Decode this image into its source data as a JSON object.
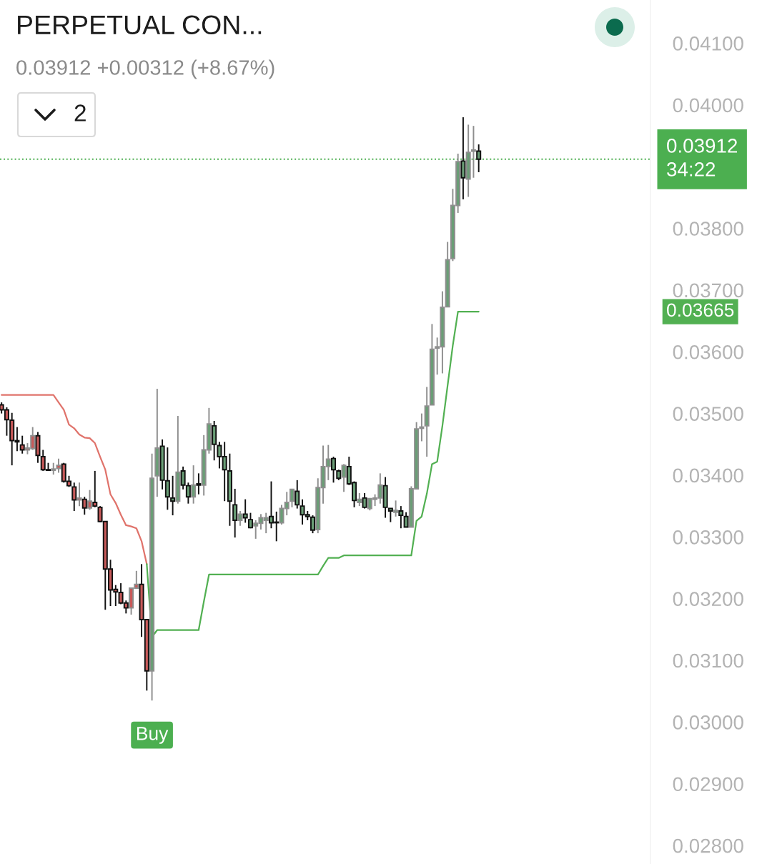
{
  "chart_data": {
    "type": "candlestick",
    "title": "PERPETUAL CON...",
    "subtitle": "0.03912 +0.00312 (+8.67%)",
    "categories": [
      null,
      null,
      null,
      null,
      null,
      null,
      null,
      null,
      null,
      null,
      null,
      null,
      null,
      null,
      null,
      null,
      null,
      null,
      null,
      null,
      null,
      null,
      null,
      null,
      null,
      null,
      null,
      null,
      null,
      null,
      null,
      null,
      null,
      null,
      null,
      null,
      null,
      null,
      null,
      null,
      null,
      null,
      null,
      null,
      null,
      null,
      null,
      null,
      null,
      null,
      null,
      null,
      null,
      null,
      null,
      null,
      null,
      null,
      null,
      null,
      null,
      null,
      null,
      null,
      null,
      null,
      null,
      null,
      null,
      null,
      null,
      null,
      null,
      null,
      null,
      null,
      null,
      null,
      null,
      null,
      null,
      null,
      null,
      null,
      null,
      null,
      null,
      null,
      null,
      null,
      null,
      null,
      null
    ],
    "ohlc": [
      [
        0.03514,
        0.03518,
        0.035,
        0.03506
      ],
      [
        0.03506,
        0.0351,
        0.03464,
        0.0349
      ],
      [
        0.03489,
        0.03501,
        0.03416,
        0.03456
      ],
      [
        0.03456,
        0.03478,
        0.03439,
        0.03454
      ],
      [
        0.03449,
        0.03464,
        0.03435,
        0.03441
      ],
      [
        0.03441,
        0.03452,
        0.03434,
        0.03444
      ],
      [
        0.03443,
        0.03478,
        0.03441,
        0.03464
      ],
      [
        0.03464,
        0.0347,
        0.0342,
        0.03432
      ],
      [
        0.0343,
        0.03441,
        0.03407,
        0.03409
      ],
      [
        0.03409,
        0.0342,
        0.03407,
        0.03408
      ],
      [
        0.03408,
        0.0342,
        0.03401,
        0.0341
      ],
      [
        0.03411,
        0.03427,
        0.03404,
        0.03416
      ],
      [
        0.03418,
        0.0342,
        0.03388,
        0.0339
      ],
      [
        0.0339,
        0.03399,
        0.03381,
        0.03383
      ],
      [
        0.03381,
        0.03388,
        0.03342,
        0.0336
      ],
      [
        0.0336,
        0.03388,
        0.0335,
        0.03363
      ],
      [
        0.03361,
        0.03365,
        0.03336,
        0.03347
      ],
      [
        0.03347,
        0.03376,
        0.03344,
        0.03358
      ],
      [
        0.03356,
        0.03407,
        0.03348,
        0.0335
      ],
      [
        0.03348,
        0.0335,
        0.03324,
        0.03325
      ],
      [
        0.03325,
        0.03325,
        0.03182,
        0.03248
      ],
      [
        0.03248,
        0.03263,
        0.03188,
        0.03214
      ],
      [
        0.03215,
        0.03222,
        0.03188,
        0.03211
      ],
      [
        0.0321,
        0.03225,
        0.03191,
        0.03193
      ],
      [
        0.03193,
        0.03197,
        0.03176,
        0.03185
      ],
      [
        0.03185,
        0.03217,
        0.03174,
        0.03217
      ],
      [
        0.03217,
        0.03245,
        0.03216,
        0.03223
      ],
      [
        0.03223,
        0.03256,
        0.03138,
        0.03166
      ],
      [
        0.03166,
        0.03166,
        0.03051,
        0.03083
      ],
      [
        0.03083,
        0.03435,
        0.03035,
        0.03395
      ],
      [
        0.03399,
        0.0354,
        0.03365,
        0.03444
      ],
      [
        0.03447,
        0.03458,
        0.03377,
        0.03392
      ],
      [
        0.03391,
        0.03445,
        0.03344,
        0.03365
      ],
      [
        0.03363,
        0.03399,
        0.03335,
        0.03358
      ],
      [
        0.03358,
        0.03496,
        0.03354,
        0.03405
      ],
      [
        0.03407,
        0.03414,
        0.03377,
        0.03384
      ],
      [
        0.03383,
        0.03388,
        0.03354,
        0.03365
      ],
      [
        0.03365,
        0.03416,
        0.03354,
        0.03384
      ],
      [
        0.03386,
        0.03403,
        0.03369,
        0.03384
      ],
      [
        0.03384,
        0.03465,
        0.03367,
        0.03441
      ],
      [
        0.03441,
        0.03509,
        0.03435,
        0.03483
      ],
      [
        0.0348,
        0.03488,
        0.03424,
        0.0345
      ],
      [
        0.03448,
        0.03454,
        0.03411,
        0.0343
      ],
      [
        0.0343,
        0.03454,
        0.03358,
        0.03409
      ],
      [
        0.03407,
        0.03435,
        0.03318,
        0.03358
      ],
      [
        0.03352,
        0.03378,
        0.03299,
        0.03327
      ],
      [
        0.03327,
        0.03342,
        0.03318,
        0.03337
      ],
      [
        0.03337,
        0.03361,
        0.03323,
        0.03331
      ],
      [
        0.03328,
        0.03339,
        0.03314,
        0.03315
      ],
      [
        0.03318,
        0.03327,
        0.03297,
        0.03322
      ],
      [
        0.03322,
        0.03337,
        0.03312,
        0.03331
      ],
      [
        0.03327,
        0.03339,
        0.03306,
        0.03331
      ],
      [
        0.03333,
        0.0339,
        0.03314,
        0.03323
      ],
      [
        0.03324,
        0.03341,
        0.03293,
        0.03323
      ],
      [
        0.03323,
        0.03352,
        0.0332,
        0.03346
      ],
      [
        0.03346,
        0.03373,
        0.03335,
        0.03356
      ],
      [
        0.03358,
        0.03378,
        0.03348,
        0.03377
      ],
      [
        0.03374,
        0.03392,
        0.03346,
        0.03352
      ],
      [
        0.0335,
        0.03361,
        0.0332,
        0.03336
      ],
      [
        0.03336,
        0.03342,
        0.03327,
        0.03333
      ],
      [
        0.03332,
        0.03335,
        0.03306,
        0.03311
      ],
      [
        0.03312,
        0.03395,
        0.03306,
        0.0338
      ],
      [
        0.0338,
        0.03448,
        0.03354,
        0.03414
      ],
      [
        0.03414,
        0.03449,
        0.03392,
        0.03426
      ],
      [
        0.03427,
        0.0343,
        0.03388,
        0.03409
      ],
      [
        0.03407,
        0.03409,
        0.03392,
        0.03395
      ],
      [
        0.03397,
        0.03418,
        0.03373,
        0.03416
      ],
      [
        0.03414,
        0.0343,
        0.03384,
        0.03386
      ],
      [
        0.03388,
        0.0339,
        0.03348,
        0.03359
      ],
      [
        0.03356,
        0.03371,
        0.0335,
        0.03361
      ],
      [
        0.03363,
        0.03371,
        0.03346,
        0.03348
      ],
      [
        0.03346,
        0.03363,
        0.03343,
        0.03362
      ],
      [
        0.03361,
        0.03369,
        0.0335,
        0.03363
      ],
      [
        0.03363,
        0.03403,
        0.03354,
        0.03384
      ],
      [
        0.03383,
        0.03397,
        0.03331,
        0.03348
      ],
      [
        0.03346,
        0.03346,
        0.03324,
        0.03342
      ],
      [
        0.0334,
        0.03359,
        0.03333,
        0.03343
      ],
      [
        0.03342,
        0.0335,
        0.03314,
        0.03335
      ],
      [
        0.03333,
        0.0334,
        0.03316,
        0.03316
      ],
      [
        0.03316,
        0.03382,
        0.03316,
        0.03378
      ],
      [
        0.03378,
        0.03486,
        0.03378,
        0.03475
      ],
      [
        0.03476,
        0.035,
        0.03455,
        0.03478
      ],
      [
        0.0348,
        0.03543,
        0.0343,
        0.03512
      ],
      [
        0.03514,
        0.03645,
        0.03514,
        0.03604
      ],
      [
        0.03606,
        0.03623,
        0.03563,
        0.03608
      ],
      [
        0.03608,
        0.03698,
        0.03565,
        0.03672
      ],
      [
        0.03673,
        0.03778,
        0.03673,
        0.03749
      ],
      [
        0.03751,
        0.03864,
        0.03747,
        0.03837
      ],
      [
        0.03837,
        0.03921,
        0.03825,
        0.03908
      ],
      [
        0.03909,
        0.0398,
        0.03847,
        0.03882
      ],
      [
        0.0388,
        0.03968,
        0.03851,
        0.03923
      ],
      [
        0.03925,
        0.03966,
        0.03882,
        0.03927
      ],
      [
        0.03925,
        0.03936,
        0.03891,
        0.03912
      ]
    ],
    "colors": [
      "#c85a5a",
      "#c85a5a",
      "#c85a5a",
      "#c85a5a",
      "#c85a5a",
      "#c85a5a",
      "#c85a5a",
      "#c85a5a",
      "#c85a5a",
      "#c85a5a",
      "#c85a5a",
      "#c85a5a",
      "#c85a5a",
      "#c85a5a",
      "#c85a5a",
      "#c85a5a",
      "#c85a5a",
      "#c85a5a",
      "#c85a5a",
      "#c85a5a",
      "#c85a5a",
      "#c85a5a",
      "#c85a5a",
      "#c85a5a",
      "#c85a5a",
      "#c85a5a",
      "#c85a5a",
      "#c85a5a",
      "#c85a5a",
      "#6a9e76",
      "#6a9e76",
      "#6a9e76",
      "#6a9e76",
      "#6a9e76",
      "#6a9e76",
      "#6a9e76",
      "#6a9e76",
      "#6a9e76",
      "#6a9e76",
      "#6a9e76",
      "#6a9e76",
      "#6a9e76",
      "#6a9e76",
      "#6a9e76",
      "#6a9e76",
      "#6a9e76",
      "#6a9e76",
      "#6a9e76",
      "#6a9e76",
      "#6a9e76",
      "#6a9e76",
      "#6a9e76",
      "#6a9e76",
      "#6a9e76",
      "#6a9e76",
      "#6a9e76",
      "#6a9e76",
      "#6a9e76",
      "#6a9e76",
      "#6a9e76",
      "#6a9e76",
      "#6a9e76",
      "#6a9e76",
      "#6a9e76",
      "#6a9e76",
      "#6a9e76",
      "#6a9e76",
      "#6a9e76",
      "#6a9e76",
      "#6a9e76",
      "#6a9e76",
      "#6a9e76",
      "#6a9e76",
      "#6a9e76",
      "#6a9e76",
      "#6a9e76",
      "#6a9e76",
      "#6a9e76",
      "#6a9e76",
      "#6a9e76",
      "#6a9e76",
      "#6a9e76",
      "#6a9e76",
      "#6a9e76",
      "#6a9e76",
      "#6a9e76",
      "#6a9e76",
      "#6a9e76",
      "#6a9e76",
      "#6a9e76",
      "#6a9e76",
      "#6a9e76",
      "#6a9e76"
    ],
    "value_labels": [
      null,
      null,
      null,
      null,
      null,
      null,
      null,
      null,
      null,
      null,
      null,
      null,
      null,
      null,
      null,
      null,
      null,
      null,
      null,
      null,
      null,
      null,
      null,
      null,
      null,
      null,
      null,
      null,
      null,
      "Buy",
      null,
      null,
      null,
      null,
      null,
      null,
      null,
      null,
      null,
      null,
      null,
      null,
      null,
      null,
      null,
      null,
      null,
      null,
      null,
      null,
      null,
      null,
      null,
      null,
      null,
      null,
      null,
      null,
      null,
      null,
      null,
      null,
      null,
      null,
      null,
      null,
      null,
      null,
      null,
      null,
      null,
      null,
      null,
      null,
      null,
      null,
      null,
      null,
      null,
      null,
      null,
      null,
      null,
      null,
      null,
      null,
      null,
      null,
      null,
      null,
      null,
      null,
      null
    ],
    "series": [
      {
        "type": "line",
        "color": "#e0736b",
        "values": [
          0.0353,
          0.0353,
          0.0353,
          0.0353,
          0.0353,
          0.0353,
          0.0353,
          0.0353,
          0.0353,
          0.0353,
          0.0353,
          0.03518,
          0.03506,
          0.03482,
          0.03476,
          0.03466,
          0.03461,
          0.0346,
          0.03452,
          0.0343,
          0.03409,
          0.03369,
          0.03355,
          0.03336,
          0.03319,
          0.03317,
          0.03314,
          0.03293,
          0.03256,
          null,
          null,
          null,
          null,
          null,
          null,
          null,
          null,
          null,
          null,
          null,
          null,
          null,
          null,
          null,
          null,
          null,
          null,
          null,
          null,
          null,
          null,
          null,
          null,
          null,
          null,
          null,
          null,
          null,
          null,
          null,
          null,
          null,
          null,
          null,
          null,
          null,
          null,
          null,
          null,
          null,
          null,
          null,
          null,
          null,
          null,
          null,
          null,
          null,
          null,
          null,
          null,
          null,
          null,
          null,
          null,
          null,
          null,
          null,
          null,
          null,
          null,
          null,
          null
        ]
      },
      {
        "type": "line",
        "color": "#52b052",
        "values": [
          null,
          null,
          null,
          null,
          null,
          null,
          null,
          null,
          null,
          null,
          null,
          null,
          null,
          null,
          null,
          null,
          null,
          null,
          null,
          null,
          null,
          null,
          null,
          null,
          null,
          null,
          null,
          null,
          0.03256,
          0.03138,
          0.03149,
          0.03149,
          0.03149,
          0.03149,
          0.03149,
          0.03149,
          0.03149,
          0.03149,
          0.03149,
          0.03195,
          0.03239,
          0.03239,
          0.03239,
          0.03239,
          0.03239,
          0.03239,
          0.03239,
          0.03239,
          0.03239,
          0.03239,
          0.03239,
          0.03239,
          0.03239,
          0.03239,
          0.03239,
          0.03239,
          0.03239,
          0.03239,
          0.03239,
          0.03239,
          0.03239,
          0.03239,
          0.03253,
          0.03266,
          0.03266,
          0.03266,
          0.0327,
          0.0327,
          0.0327,
          0.0327,
          0.0327,
          0.0327,
          0.0327,
          0.0327,
          0.0327,
          0.0327,
          0.0327,
          0.0327,
          0.0327,
          0.0327,
          0.03326,
          0.03333,
          0.0337,
          0.03418,
          0.03422,
          0.0348,
          0.03545,
          0.0361,
          0.03665,
          0.03665,
          0.03665,
          0.03665,
          0.03665
        ]
      }
    ],
    "ylim": [
      0.0277,
      0.0417
    ],
    "yticks": [
      {
        "value": 0.028,
        "label": "0.02800"
      },
      {
        "value": 0.029,
        "label": "0.02900"
      },
      {
        "value": 0.03,
        "label": "0.03000"
      },
      {
        "value": 0.031,
        "label": "0.03100"
      },
      {
        "value": 0.032,
        "label": "0.03200"
      },
      {
        "value": 0.033,
        "label": "0.03300"
      },
      {
        "value": 0.034,
        "label": "0.03400"
      },
      {
        "value": 0.035,
        "label": "0.03500"
      },
      {
        "value": 0.036,
        "label": "0.03600"
      },
      {
        "value": 0.037,
        "label": "0.03700"
      },
      {
        "value": 0.038,
        "label": "0.03800"
      },
      {
        "value": 0.04,
        "label": "0.04000"
      },
      {
        "value": 0.041,
        "label": "0.04100"
      }
    ],
    "tick_labels": "y",
    "ref_lines": [
      {
        "axis": "y",
        "value": 0.03912,
        "label": "0.03912\n34:22",
        "color": "#4caf50",
        "line_style": "dotted"
      }
    ],
    "annotations": [
      "2",
      "0.03665"
    ]
  }
}
